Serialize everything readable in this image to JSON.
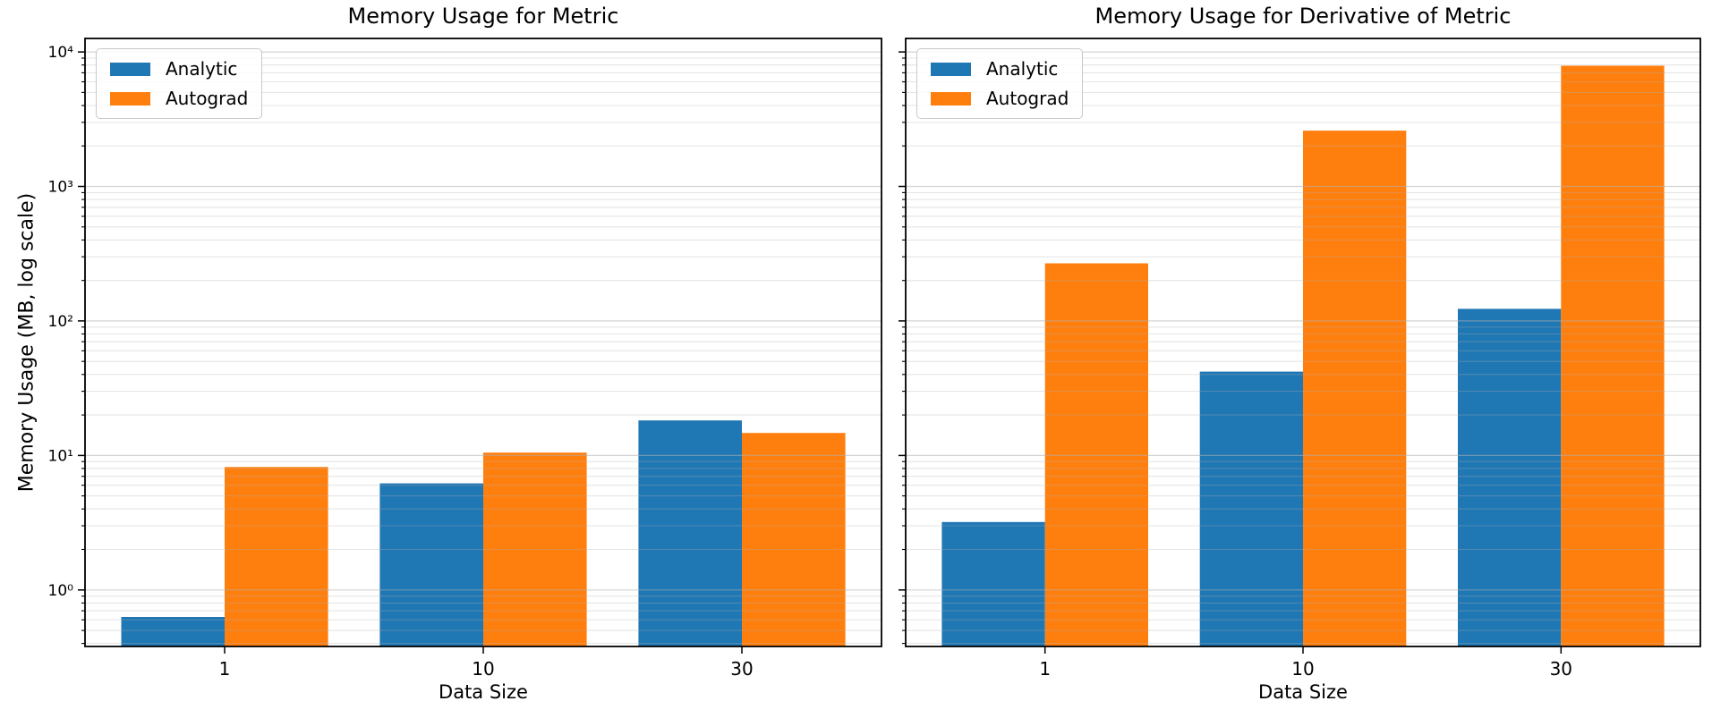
{
  "figure": {
    "background": "#ffffff",
    "ylabel": "Memory Usage (MB, log scale)",
    "text_color": "#000000",
    "spine_color": "#000000",
    "grid_color": "#b0b0b0",
    "accent_blue": "#1f77b4",
    "accent_orange": "#ff7f0e"
  },
  "chart_data": [
    {
      "type": "bar",
      "title": "Memory Usage for Metric",
      "xlabel": "Data Size",
      "ylabel": "Memory Usage (MB, log scale)",
      "yscale": "log",
      "ylim": [
        0.38,
        12600
      ],
      "grid": "both",
      "legend_position": "upper left",
      "categories": [
        "1",
        "10",
        "30"
      ],
      "y_tick_labels": [
        "10⁰",
        "10¹",
        "10²",
        "10³",
        "10⁴"
      ],
      "show_y_tick_labels": true,
      "series": [
        {
          "name": "Analytic",
          "color": "#1f77b4",
          "values": [
            0.63,
            6.2,
            18.2
          ]
        },
        {
          "name": "Autograd",
          "color": "#ff7f0e",
          "values": [
            8.2,
            10.5,
            14.7
          ]
        }
      ]
    },
    {
      "type": "bar",
      "title": "Memory Usage for Derivative of Metric",
      "xlabel": "Data Size",
      "ylabel": "Memory Usage (MB, log scale)",
      "yscale": "log",
      "ylim": [
        0.38,
        12600
      ],
      "grid": "both",
      "legend_position": "upper left",
      "categories": [
        "1",
        "10",
        "30"
      ],
      "y_tick_labels": [
        "10⁰",
        "10¹",
        "10²",
        "10³",
        "10⁴"
      ],
      "show_y_tick_labels": false,
      "series": [
        {
          "name": "Analytic",
          "color": "#1f77b4",
          "values": [
            3.2,
            42,
            123
          ]
        },
        {
          "name": "Autograd",
          "color": "#ff7f0e",
          "values": [
            268,
            2600,
            7900
          ]
        }
      ]
    }
  ]
}
